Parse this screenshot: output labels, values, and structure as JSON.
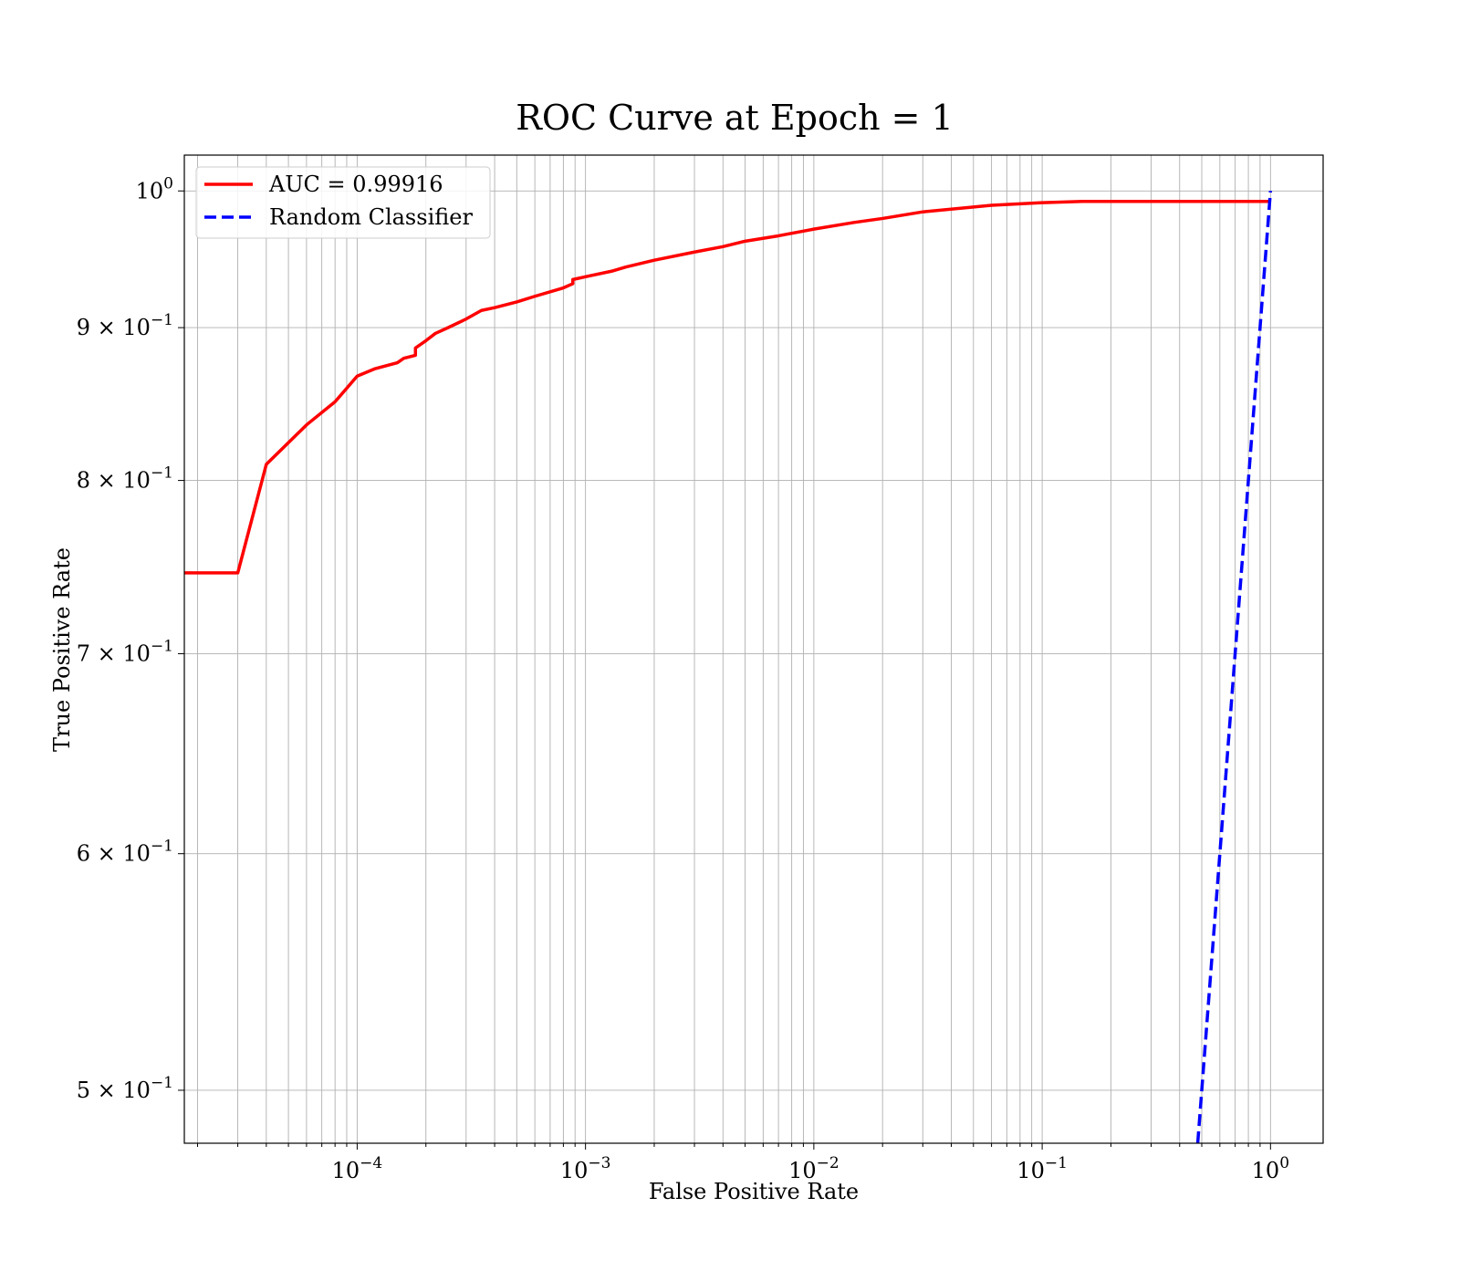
{
  "chart_data": {
    "type": "line",
    "title": "ROC Curve at Epoch = 1",
    "xlabel": "False Positive Rate",
    "ylabel": "True Positive Rate",
    "xscale": "log",
    "yscale": "log",
    "xlim": [
      1.75e-05,
      1.7
    ],
    "ylim": [
      0.48,
      1.028
    ],
    "grid": true,
    "grid_minor": true,
    "legend_position": "top-left",
    "x_ticks": [
      {
        "value": 0.0001,
        "base": "10",
        "exp": "−4"
      },
      {
        "value": 0.001,
        "base": "10",
        "exp": "−3"
      },
      {
        "value": 0.01,
        "base": "10",
        "exp": "−2"
      },
      {
        "value": 0.1,
        "base": "10",
        "exp": "−1"
      },
      {
        "value": 1,
        "base": "10",
        "exp": "0"
      }
    ],
    "y_ticks": [
      {
        "value": 1.0,
        "base": "10",
        "exp": "0",
        "mult": ""
      },
      {
        "value": 0.9,
        "base": "10",
        "exp": "−1",
        "mult": "9 × "
      },
      {
        "value": 0.8,
        "base": "10",
        "exp": "−1",
        "mult": "8 × "
      },
      {
        "value": 0.7,
        "base": "10",
        "exp": "−1",
        "mult": "7 × "
      },
      {
        "value": 0.6,
        "base": "10",
        "exp": "−1",
        "mult": "6 × "
      },
      {
        "value": 0.5,
        "base": "10",
        "exp": "−1",
        "mult": "5 × "
      }
    ],
    "series": [
      {
        "name": "AUC = 0.99916",
        "color": "#ff0000",
        "style": "solid",
        "x": [
          1.75e-05,
          3e-05,
          4e-05,
          6e-05,
          8e-05,
          0.0001,
          0.00012,
          0.00015,
          0.00016,
          0.00018,
          0.00018,
          0.0002,
          0.00022,
          0.00025,
          0.0003,
          0.00035,
          0.0004,
          0.0005,
          0.0006,
          0.0008,
          0.00088,
          0.00088,
          0.001,
          0.0013,
          0.0015,
          0.002,
          0.003,
          0.004,
          0.005,
          0.007,
          0.01,
          0.015,
          0.02,
          0.03,
          0.06,
          0.1,
          0.15,
          0.3,
          0.5,
          1.0
        ],
        "y": [
          0.745,
          0.745,
          0.81,
          0.835,
          0.85,
          0.867,
          0.872,
          0.876,
          0.879,
          0.881,
          0.886,
          0.891,
          0.896,
          0.9,
          0.906,
          0.912,
          0.914,
          0.918,
          0.922,
          0.928,
          0.931,
          0.934,
          0.936,
          0.94,
          0.943,
          0.948,
          0.954,
          0.958,
          0.962,
          0.966,
          0.971,
          0.976,
          0.979,
          0.984,
          0.989,
          0.991,
          0.992,
          0.992,
          0.992,
          0.992
        ]
      },
      {
        "name": "Random Classifier",
        "color": "#0000ff",
        "style": "dashed",
        "x": [
          0.48,
          1.0
        ],
        "y": [
          0.48,
          1.0
        ]
      }
    ]
  }
}
